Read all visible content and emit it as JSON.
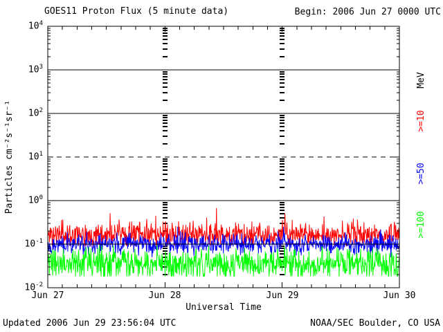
{
  "header": {
    "title": "GOES11 Proton Flux (5 minute data)",
    "begin_label": "Begin: 2006 Jun 27 0000 UTC"
  },
  "footer": {
    "updated": "Updated 2006 Jun 29 23:56:04 UTC",
    "credit": "NOAA/SEC Boulder, CO USA"
  },
  "chart_data": {
    "type": "line",
    "title": "GOES11 Proton Flux (5 minute data)",
    "xlabel": "Universal Time",
    "ylabel": "Particles cm⁻²s⁻¹sr⁻¹",
    "right_axis_unit": "MeV",
    "x_ticks": [
      "Jun 27",
      "Jun 28",
      "Jun 29",
      "Jun 30"
    ],
    "y_tick_exponents": [
      4,
      3,
      2,
      1,
      0,
      -1,
      -2
    ],
    "ylim": [
      0.01,
      10000
    ],
    "y_scale": "log",
    "x_range": {
      "start": "2006 Jun 27 0000 UTC",
      "end": "2006 Jun 30 0000 UTC",
      "days": 3
    },
    "cadence_minutes": 5,
    "points_per_day": 288,
    "minor_x_ticks_per_day": 8,
    "gridlines": {
      "solid_exponents": [
        3,
        2,
        0,
        -1
      ],
      "dashed_exponents": [
        1
      ],
      "vertical_day_dash_columns": [
        1,
        2
      ]
    },
    "series": [
      {
        "name": ">=10 MeV",
        "label": ">=10",
        "color": "#ff0000",
        "typical_flux": 0.17,
        "min_flux": 0.09,
        "max_flux": 0.65,
        "noise_model": {
          "seed": 11,
          "mean_log10": -0.78,
          "sd_log10": 0.14,
          "spike_prob": 0.03,
          "spike_max_log10": 0.45,
          "clip_log10": [
            -1.04,
            -0.17
          ]
        }
      },
      {
        "name": ">=50 MeV",
        "label": ">=50",
        "color": "#0000ff",
        "typical_flux": 0.1,
        "min_flux": 0.05,
        "max_flux": 0.3,
        "noise_model": {
          "seed": 22,
          "mean_log10": -1.0,
          "sd_log10": 0.11,
          "spike_prob": 0.015,
          "spike_max_log10": 0.35,
          "clip_log10": [
            -1.3,
            -0.6
          ]
        }
      },
      {
        "name": ">=100 MeV",
        "label": ">=100",
        "color": "#00ff00",
        "typical_flux": 0.04,
        "min_flux": 0.018,
        "max_flux": 0.1,
        "noise_model": {
          "seed": 33,
          "mean_log10": -1.45,
          "sd_log10": 0.18,
          "spike_prob": 0.01,
          "spike_max_log10": 0.25,
          "clip_log10": [
            -1.74,
            -1.02
          ]
        }
      }
    ]
  }
}
